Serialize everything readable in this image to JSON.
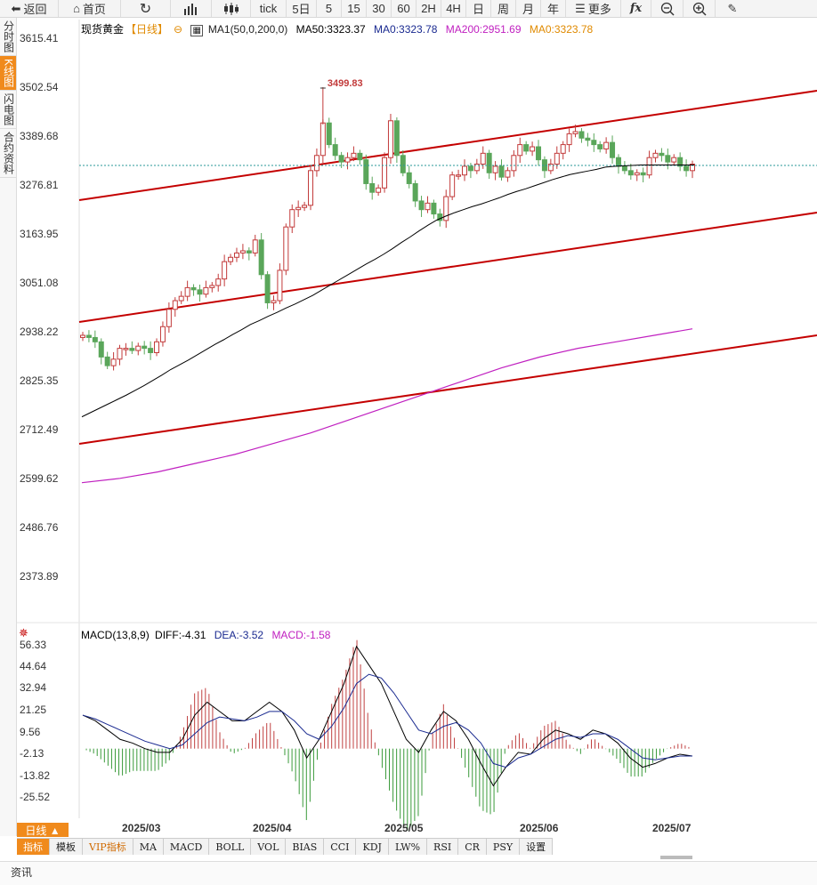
{
  "toolbar": {
    "back": "返回",
    "home": "首页",
    "tick": "tick",
    "five_day": "5日",
    "periods": [
      "5",
      "15",
      "30",
      "60",
      "2H",
      "4H",
      "日",
      "周",
      "月",
      "年"
    ],
    "more": "更多"
  },
  "sidebar": {
    "items": [
      {
        "label": "分时图",
        "active": false
      },
      {
        "label": "K线图",
        "active": true
      },
      {
        "label": "闪电图",
        "active": false
      },
      {
        "label": "合约资料",
        "active": false
      }
    ]
  },
  "price_axis": [
    "3615.41",
    "3502.54",
    "3389.68",
    "3276.81",
    "3163.95",
    "3051.08",
    "2938.22",
    "2825.35",
    "2712.49",
    "2599.62",
    "2486.76",
    "2373.89"
  ],
  "legend": {
    "instrument": "现货黄金",
    "period": "【日线】",
    "ma_config": "MA1(50,0,200,0)",
    "ma50": "MA50:3323.37",
    "ma0": "MA0:3323.78",
    "ma200": "MA200:2951.69",
    "ma0b": "MA0:3323.78"
  },
  "annotation_high": "3499.83",
  "macd": {
    "title": "MACD(13,8,9)",
    "diff": "DIFF:-4.31",
    "dea": "DEA:-3.52",
    "macd": "MACD:-1.58",
    "axis": [
      "56.33",
      "44.64",
      "32.94",
      "21.25",
      "9.56",
      "-2.13",
      "-13.82",
      "-25.52"
    ]
  },
  "x_axis": [
    "2025/03",
    "2025/04",
    "2025/05",
    "2025/06",
    "2025/07"
  ],
  "period_button": "日线 ▲",
  "indicators": [
    {
      "label": "指标",
      "active": true
    },
    {
      "label": "模板",
      "active": false
    },
    {
      "label": "VIP指标",
      "vip": true
    },
    {
      "label": "MA"
    },
    {
      "label": "MACD"
    },
    {
      "label": "BOLL"
    },
    {
      "label": "VOL"
    },
    {
      "label": "BIAS"
    },
    {
      "label": "CCI"
    },
    {
      "label": "KDJ"
    },
    {
      "label": "LW%"
    },
    {
      "label": "RSI"
    },
    {
      "label": "CR"
    },
    {
      "label": "PSY"
    },
    {
      "label": "设置"
    }
  ],
  "bottom_tab": "资讯",
  "colors": {
    "up": "#c23a3a",
    "down": "#5aa65a",
    "trend": "#c40000",
    "ma50": "#000000",
    "ma200": "#c020c0",
    "accent": "#f08a1c"
  },
  "chart_data": {
    "type": "candlestick",
    "ylim": [
      2373.89,
      3615.41
    ],
    "closes": [
      2930,
      2925,
      2915,
      2880,
      2860,
      2875,
      2900,
      2900,
      2895,
      2905,
      2900,
      2890,
      2915,
      2950,
      2990,
      3010,
      3020,
      3040,
      3035,
      3025,
      3040,
      3045,
      3060,
      3100,
      3110,
      3120,
      3125,
      3120,
      3150,
      3070,
      3005,
      3010,
      3080,
      3180,
      3220,
      3225,
      3230,
      3310,
      3345,
      3420,
      3370,
      3345,
      3330,
      3340,
      3350,
      3335,
      3280,
      3260,
      3270,
      3340,
      3425,
      3345,
      3305,
      3280,
      3240,
      3220,
      3235,
      3210,
      3195,
      3250,
      3300,
      3300,
      3320,
      3310,
      3325,
      3350,
      3305,
      3320,
      3295,
      3310,
      3345,
      3370,
      3355,
      3365,
      3335,
      3310,
      3325,
      3350,
      3370,
      3395,
      3400,
      3385,
      3380,
      3370,
      3360,
      3375,
      3340,
      3320,
      3310,
      3300,
      3305,
      3300,
      3340,
      3350,
      3345,
      3330,
      3340,
      3320,
      3310,
      3325
    ],
    "series": [
      {
        "name": "MA50",
        "values": [
          2742,
          2752,
          2762,
          2772,
          2782,
          2792,
          2803,
          2814,
          2826,
          2838,
          2851,
          2862,
          2873,
          2885,
          2897,
          2909,
          2920,
          2932,
          2943,
          2955,
          2964,
          2974,
          2983,
          2993,
          3002,
          3012,
          3022,
          3034,
          3046,
          3058,
          3070,
          3082,
          3094,
          3105,
          3117,
          3130,
          3144,
          3157,
          3171,
          3184,
          3196,
          3205,
          3213,
          3220,
          3227,
          3233,
          3240,
          3247,
          3255,
          3262,
          3268,
          3275,
          3282,
          3289,
          3295,
          3301,
          3305,
          3309,
          3313,
          3318,
          3320,
          3321,
          3322,
          3323,
          3323,
          3323,
          3323,
          3323,
          3323,
          3323
        ]
      },
      {
        "name": "MA200",
        "values": [
          2590,
          2600,
          2615,
          2635,
          2655,
          2680,
          2705,
          2735,
          2765,
          2795,
          2825,
          2855,
          2880,
          2900,
          2915,
          2930,
          2945
        ]
      }
    ],
    "macd_values": {
      "diff": [
        18,
        15,
        10,
        5,
        3,
        0,
        -2,
        -2,
        5,
        18,
        25,
        20,
        15,
        15,
        20,
        25,
        20,
        10,
        -5,
        5,
        20,
        35,
        55,
        45,
        35,
        20,
        5,
        -2,
        10,
        20,
        15,
        5,
        -8,
        -20,
        -10,
        -2,
        -3,
        5,
        10,
        8,
        5,
        10,
        8,
        3,
        -5,
        -10,
        -8,
        -5,
        -3,
        -4
      ],
      "dea": [
        18,
        16,
        13,
        10,
        7,
        4,
        2,
        0,
        2,
        8,
        14,
        17,
        16,
        15,
        17,
        20,
        20,
        15,
        8,
        5,
        12,
        22,
        35,
        40,
        38,
        30,
        20,
        10,
        8,
        12,
        14,
        10,
        3,
        -8,
        -10,
        -5,
        -3,
        1,
        5,
        7,
        6,
        8,
        8,
        5,
        0,
        -5,
        -6,
        -5,
        -4,
        -4
      ]
    }
  }
}
